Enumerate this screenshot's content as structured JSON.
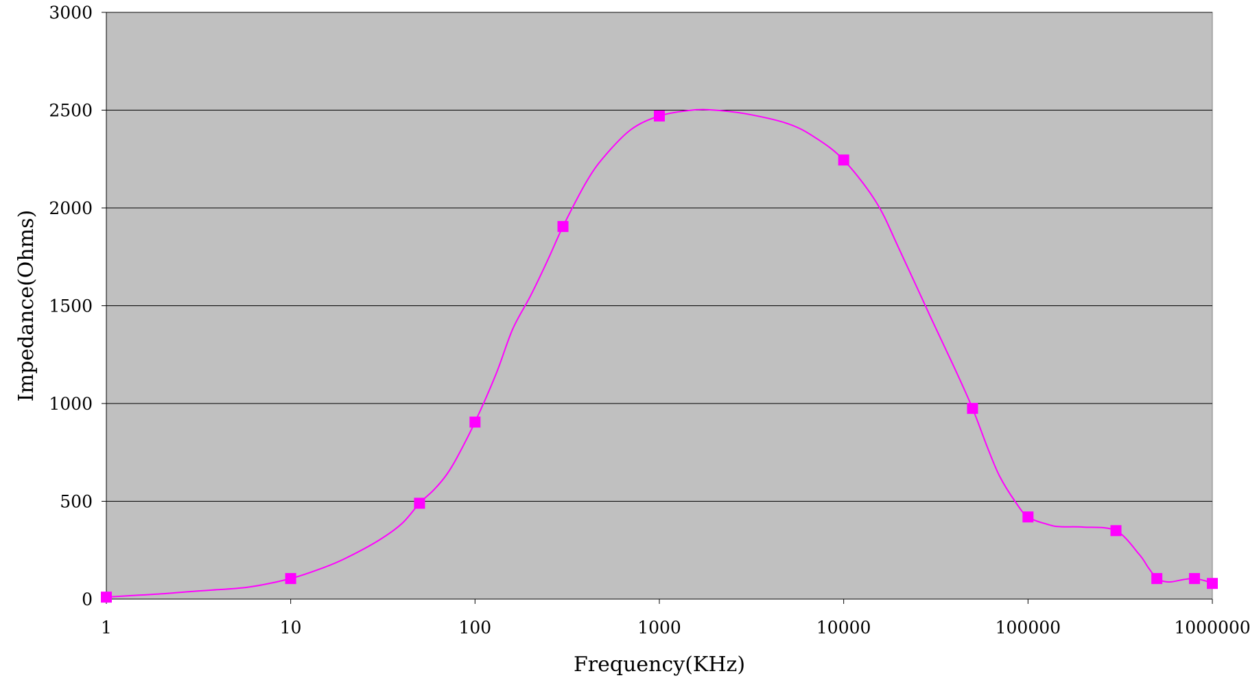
{
  "chart_data": {
    "type": "line",
    "xlabel": "Frequency(KHz)",
    "ylabel": "Impedance(Ohms)",
    "x_scale": "log",
    "xlim": [
      1,
      1000000
    ],
    "ylim": [
      0,
      3000
    ],
    "x_ticks": [
      "1",
      "10",
      "100",
      "1000",
      "10000",
      "100000",
      "1000000"
    ],
    "y_ticks": [
      "0",
      "500",
      "1000",
      "1500",
      "2000",
      "2500",
      "3000"
    ],
    "grid": "horizontal",
    "legend": "none",
    "colors": {
      "plot_background": "#c0c0c0",
      "series": "#ff00ff",
      "gridline": "#000000"
    },
    "series": [
      {
        "marker": "square",
        "points": [
          [
            1,
            10
          ],
          [
            10,
            105
          ],
          [
            50,
            490
          ],
          [
            100,
            905
          ],
          [
            300,
            1905
          ],
          [
            1000,
            2470
          ],
          [
            10000,
            2245
          ],
          [
            50000,
            975
          ],
          [
            100000,
            420
          ],
          [
            300000,
            350
          ],
          [
            500000,
            105
          ],
          [
            800000,
            105
          ],
          [
            1000000,
            80
          ]
        ],
        "curve": [
          [
            1,
            10
          ],
          [
            1.5,
            20
          ],
          [
            2,
            27
          ],
          [
            3,
            40
          ],
          [
            4,
            48
          ],
          [
            6,
            62
          ],
          [
            10,
            105
          ],
          [
            15,
            160
          ],
          [
            20,
            210
          ],
          [
            30,
            300
          ],
          [
            40,
            385
          ],
          [
            50,
            490
          ],
          [
            60,
            560
          ],
          [
            70,
            635
          ],
          [
            80,
            725
          ],
          [
            100,
            905
          ],
          [
            130,
            1150
          ],
          [
            160,
            1380
          ],
          [
            200,
            1550
          ],
          [
            250,
            1740
          ],
          [
            300,
            1905
          ],
          [
            400,
            2130
          ],
          [
            500,
            2260
          ],
          [
            700,
            2400
          ],
          [
            1000,
            2470
          ],
          [
            1500,
            2500
          ],
          [
            2000,
            2500
          ],
          [
            3000,
            2480
          ],
          [
            5000,
            2430
          ],
          [
            7000,
            2360
          ],
          [
            10000,
            2245
          ],
          [
            15000,
            2030
          ],
          [
            20000,
            1790
          ],
          [
            30000,
            1430
          ],
          [
            40000,
            1180
          ],
          [
            50000,
            975
          ],
          [
            60000,
            780
          ],
          [
            70000,
            630
          ],
          [
            85000,
            500
          ],
          [
            100000,
            420
          ],
          [
            130000,
            380
          ],
          [
            150000,
            370
          ],
          [
            200000,
            368
          ],
          [
            300000,
            350
          ],
          [
            400000,
            230
          ],
          [
            450000,
            160
          ],
          [
            500000,
            105
          ],
          [
            550000,
            90
          ],
          [
            600000,
            88
          ],
          [
            700000,
            100
          ],
          [
            800000,
            105
          ],
          [
            900000,
            95
          ],
          [
            1000000,
            80
          ]
        ]
      }
    ]
  }
}
